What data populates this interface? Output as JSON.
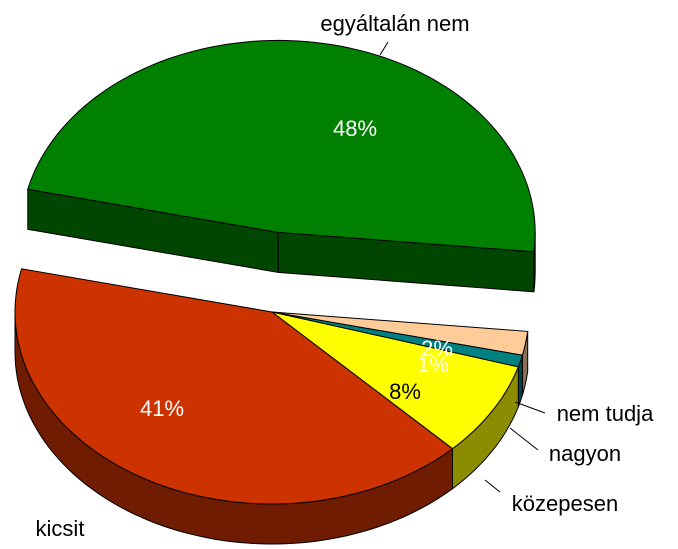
{
  "chart_data": {
    "type": "pie3d",
    "categories": [
      "egyáltalán nem",
      "nem tudja",
      "nagyon",
      "közepesen",
      "kicsit"
    ],
    "values": [
      48,
      2,
      1,
      8,
      41
    ],
    "value_labels": [
      "48%",
      "2%",
      "1%",
      "8%",
      "41%"
    ],
    "colors": [
      "#008000",
      "#ffcc99",
      "#008080",
      "#ffff00",
      "#cc3300"
    ],
    "exploded": [
      true,
      false,
      false,
      false,
      false
    ]
  }
}
